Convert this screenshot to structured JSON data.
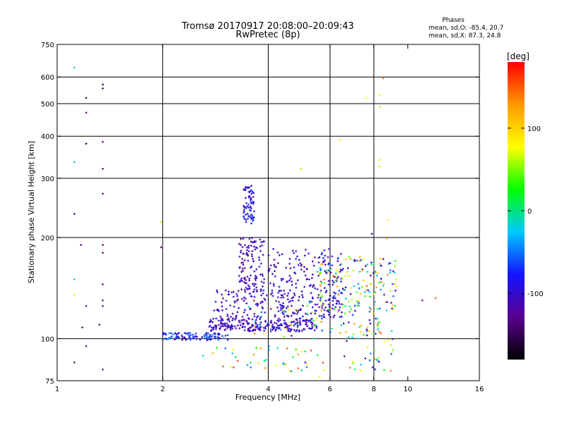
{
  "chart_data": {
    "type": "scatter",
    "title": "Tromsø 20170917 20:08:00–20:09:43",
    "subtitle": "RwPretec (8p)",
    "stats": {
      "heading": "Phases",
      "line1": "mean, sd,O: -85.4, 20.7",
      "line2": "mean, sd,X:  87.3, 24.8"
    },
    "xlabel": "Frequency [MHz]",
    "ylabel": "Stationary phase Virtual Height [km]",
    "x_scale": "log",
    "y_scale": "log",
    "xlim": [
      1,
      16
    ],
    "ylim": [
      75,
      750
    ],
    "x_ticks": [
      1,
      2,
      4,
      6,
      8,
      10,
      16
    ],
    "x_tick_labels": [
      "1",
      "2",
      "4",
      "6",
      "8",
      "10",
      "16"
    ],
    "y_ticks": [
      75,
      100,
      200,
      300,
      400,
      500,
      600,
      750
    ],
    "y_tick_labels": [
      "75",
      "100",
      "200",
      "300",
      "400",
      "500",
      "600",
      "750"
    ],
    "grid": true,
    "grid_x": [
      2,
      4,
      6,
      8
    ],
    "grid_y": [
      100,
      200,
      300,
      400,
      500,
      600
    ],
    "colorbar": {
      "label": "[deg]",
      "range": [
        -180,
        180
      ],
      "ticks": [
        100,
        0,
        -100
      ],
      "tick_labels": [
        "100",
        "0",
        "-100"
      ],
      "colormap": [
        "#000000",
        "#5a0090",
        "#1414ff",
        "#00c8ff",
        "#00ff00",
        "#ffff00",
        "#ff9900",
        "#ff0000"
      ]
    },
    "clusters": [
      {
        "xr": [
          2.0,
          3.1
        ],
        "yr": [
          99,
          104
        ],
        "n": 110,
        "pr": [
          -120,
          -40
        ]
      },
      {
        "xr": [
          2.7,
          5.5
        ],
        "yr": [
          105,
          115
        ],
        "n": 230,
        "pr": [
          -130,
          -80
        ]
      },
      {
        "xr": [
          2.8,
          6.5
        ],
        "yr": [
          115,
          140
        ],
        "n": 220,
        "pr": [
          -130,
          -80
        ]
      },
      {
        "xr": [
          3.3,
          3.9
        ],
        "yr": [
          140,
          200
        ],
        "n": 110,
        "pr": [
          -130,
          -90
        ]
      },
      {
        "xr": [
          3.4,
          3.65
        ],
        "yr": [
          220,
          285
        ],
        "n": 70,
        "pr": [
          -120,
          -60
        ]
      },
      {
        "xr": [
          4.0,
          6.5
        ],
        "yr": [
          140,
          185
        ],
        "n": 110,
        "pr": [
          -130,
          -70
        ]
      },
      {
        "xr": [
          5.5,
          9.4
        ],
        "yr": [
          120,
          175
        ],
        "n": 170,
        "pr": [
          -130,
          150
        ]
      },
      {
        "xr": [
          6.5,
          9.3
        ],
        "yr": [
          80,
          115
        ],
        "n": 50,
        "pr": [
          -130,
          150
        ]
      },
      {
        "xr": [
          2.6,
          5.8
        ],
        "yr": [
          80,
          95
        ],
        "n": 45,
        "pr": [
          -60,
          160
        ]
      },
      {
        "xr": [
          3.5,
          8.5
        ],
        "yr": [
          100,
          130
        ],
        "n": 60,
        "pr": [
          -80,
          150
        ]
      }
    ],
    "points": [
      {
        "x": 1.12,
        "y": 640,
        "p": -10
      },
      {
        "x": 1.12,
        "y": 335,
        "p": -30
      },
      {
        "x": 1.12,
        "y": 235,
        "p": -100
      },
      {
        "x": 1.12,
        "y": 150,
        "p": -20
      },
      {
        "x": 1.12,
        "y": 135,
        "p": 70
      },
      {
        "x": 1.12,
        "y": 85,
        "p": -120
      },
      {
        "x": 1.17,
        "y": 190,
        "p": -130
      },
      {
        "x": 1.18,
        "y": 108,
        "p": -120
      },
      {
        "x": 1.21,
        "y": 520,
        "p": -160
      },
      {
        "x": 1.21,
        "y": 470,
        "p": -130
      },
      {
        "x": 1.21,
        "y": 380,
        "p": -150
      },
      {
        "x": 1.21,
        "y": 125,
        "p": -120
      },
      {
        "x": 1.21,
        "y": 95,
        "p": -120
      },
      {
        "x": 1.35,
        "y": 570,
        "p": -160
      },
      {
        "x": 1.35,
        "y": 555,
        "p": -150
      },
      {
        "x": 1.35,
        "y": 385,
        "p": -130
      },
      {
        "x": 1.35,
        "y": 320,
        "p": -130
      },
      {
        "x": 1.35,
        "y": 270,
        "p": -120
      },
      {
        "x": 1.35,
        "y": 190,
        "p": -140
      },
      {
        "x": 1.35,
        "y": 180,
        "p": -140
      },
      {
        "x": 1.35,
        "y": 145,
        "p": -130
      },
      {
        "x": 1.35,
        "y": 130,
        "p": -120
      },
      {
        "x": 1.35,
        "y": 125,
        "p": -120
      },
      {
        "x": 1.35,
        "y": 81,
        "p": -120
      },
      {
        "x": 1.32,
        "y": 110,
        "p": -120
      },
      {
        "x": 1.98,
        "y": 222,
        "p": 60
      },
      {
        "x": 1.98,
        "y": 187,
        "p": -130
      },
      {
        "x": 7.9,
        "y": 205,
        "p": -100
      },
      {
        "x": 7.6,
        "y": 520,
        "p": 80
      },
      {
        "x": 8.3,
        "y": 530,
        "p": 80
      },
      {
        "x": 8.35,
        "y": 490,
        "p": 60
      },
      {
        "x": 8.5,
        "y": 595,
        "p": 140
      },
      {
        "x": 8.3,
        "y": 340,
        "p": 70
      },
      {
        "x": 8.3,
        "y": 325,
        "p": 60
      },
      {
        "x": 8.8,
        "y": 225,
        "p": 90
      },
      {
        "x": 8.7,
        "y": 198,
        "p": 100
      },
      {
        "x": 6.4,
        "y": 390,
        "p": 90
      },
      {
        "x": 4.95,
        "y": 320,
        "p": 60
      },
      {
        "x": 11.0,
        "y": 130,
        "p": -130
      },
      {
        "x": 12.0,
        "y": 132,
        "p": 150
      },
      {
        "x": 5.1,
        "y": 85,
        "p": -110
      },
      {
        "x": 5.6,
        "y": 77,
        "p": 80
      }
    ]
  }
}
